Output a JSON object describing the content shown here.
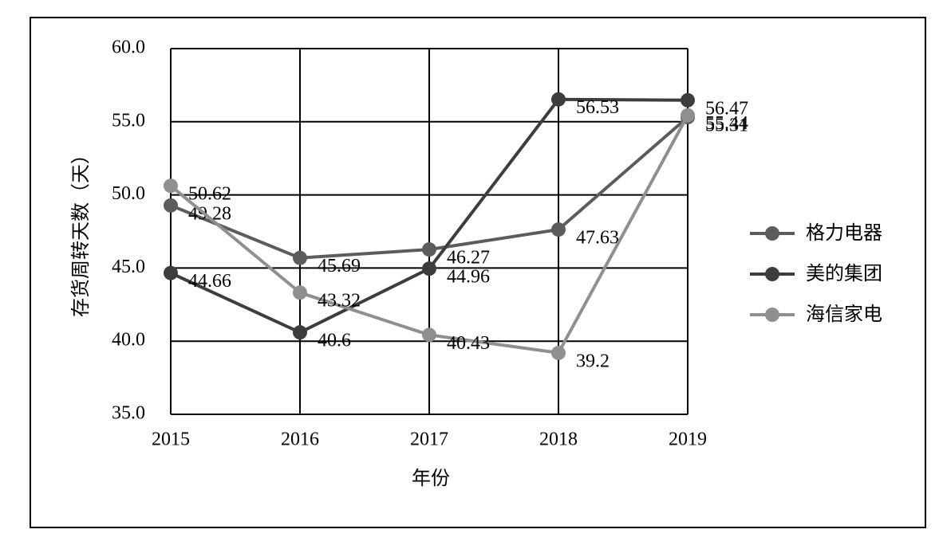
{
  "chart_data": {
    "type": "line",
    "x_label": "年份",
    "y_label": "存货周转天数（天）",
    "categories": [
      "2015",
      "2016",
      "2017",
      "2018",
      "2019"
    ],
    "series": [
      {
        "name": "格力电器",
        "color": "#5c5c5c",
        "values": [
          49.28,
          45.69,
          46.27,
          47.63,
          55.31
        ]
      },
      {
        "name": "美的集团",
        "color": "#3d3d3d",
        "values": [
          44.66,
          40.6,
          44.96,
          56.53,
          56.47
        ]
      },
      {
        "name": "海信家电",
        "color": "#8f8f8f",
        "values": [
          50.62,
          43.32,
          40.43,
          39.2,
          55.44
        ]
      }
    ],
    "ylim": [
      35,
      60
    ],
    "yticks": [
      {
        "value": 35,
        "label": "35.0"
      },
      {
        "value": 40,
        "label": "40.0"
      },
      {
        "value": 45,
        "label": "45.0"
      },
      {
        "value": 50,
        "label": "50.0"
      },
      {
        "value": 55,
        "label": "55.0"
      },
      {
        "value": 60,
        "label": "60.0"
      }
    ],
    "grid": true,
    "legend": "right"
  }
}
